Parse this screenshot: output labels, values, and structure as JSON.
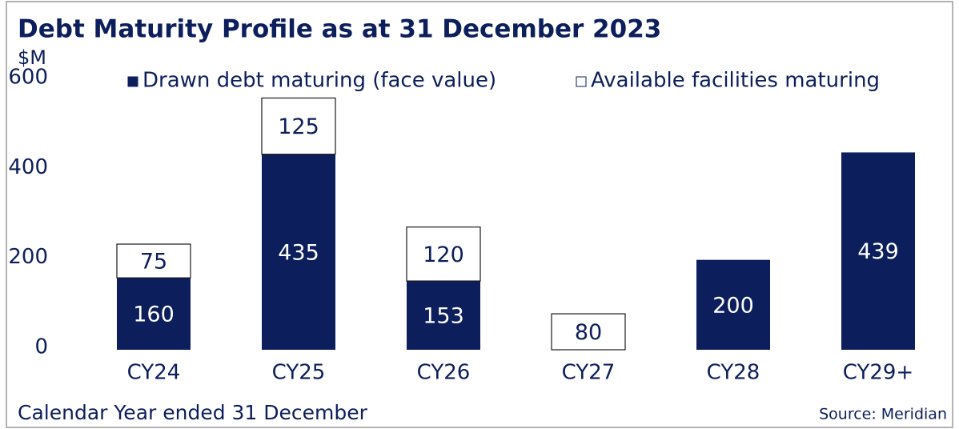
{
  "chart_data": {
    "type": "stacked_bar",
    "title": "Debt Maturity Profile as at 31 December 2023",
    "y_axis_label": "$M",
    "x_axis_label": "Calendar Year ended 31 December",
    "source": "Source: Meridian",
    "categories": [
      "CY24",
      "CY25",
      "CY26",
      "CY27",
      "CY28",
      "CY29+"
    ],
    "series": [
      {
        "name": "Drawn debt maturing (face value)",
        "color": "#0c1e5b",
        "values": [
          160,
          435,
          153,
          null,
          200,
          439
        ]
      },
      {
        "name": "Available facilities maturing",
        "color": "#ffffff",
        "values": [
          75,
          125,
          120,
          80,
          null,
          null
        ]
      }
    ],
    "ylim": [
      0,
      600
    ],
    "yticks": [
      0,
      200,
      400,
      600
    ],
    "grid": false
  }
}
